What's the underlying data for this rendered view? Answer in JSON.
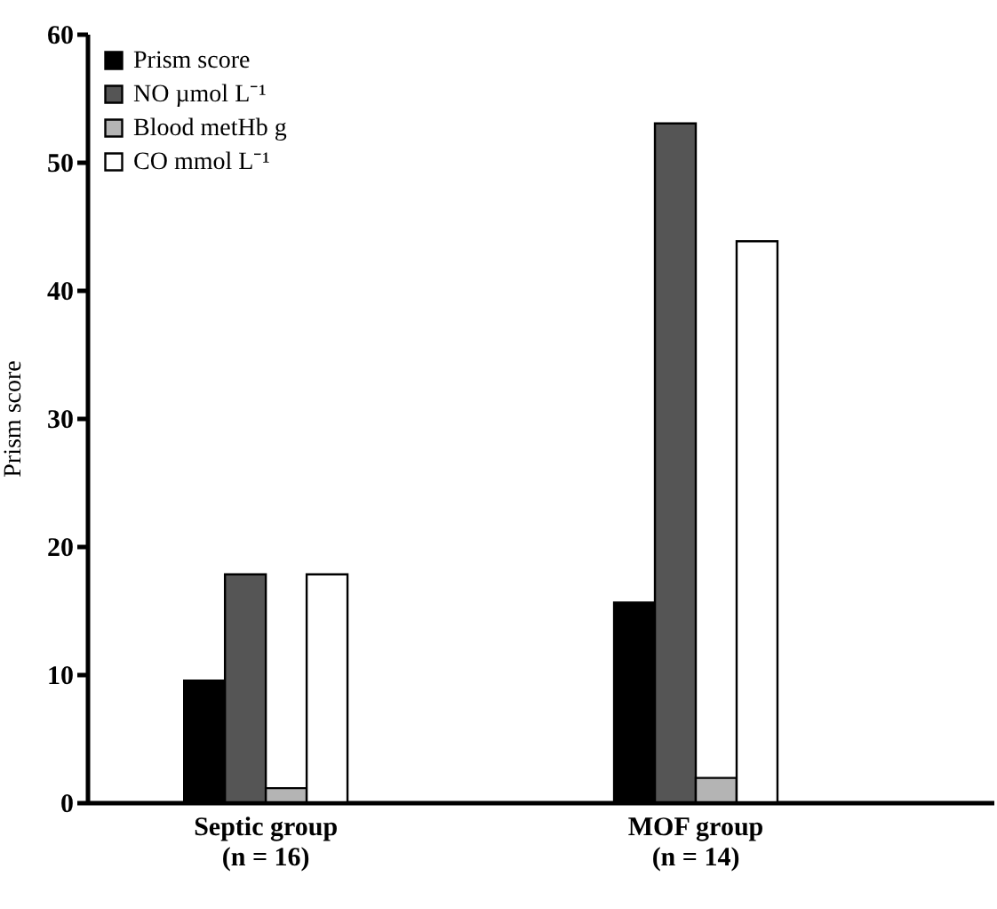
{
  "chart_data": {
    "type": "bar",
    "ylabel": "Prism score",
    "categories": [
      "Septic group\n(n = 16)",
      "MOF group\n(n = 14)"
    ],
    "series": [
      {
        "name": "Prism score",
        "color": "#000000",
        "values": [
          9.5,
          15.6
        ]
      },
      {
        "name": "NO µmol L⁻¹",
        "color": "#555555",
        "values": [
          17.8,
          53
        ]
      },
      {
        "name": "Blood metHb g",
        "color": "#b4b4b4",
        "values": [
          1.1,
          1.9
        ]
      },
      {
        "name": "CO mmol L⁻¹",
        "color": "#ffffff",
        "values": [
          17.8,
          43.8
        ]
      }
    ],
    "ylim": [
      0,
      60
    ],
    "yticks": [
      0,
      10,
      20,
      30,
      40,
      50,
      60
    ],
    "grid": false,
    "legend": "top left"
  }
}
